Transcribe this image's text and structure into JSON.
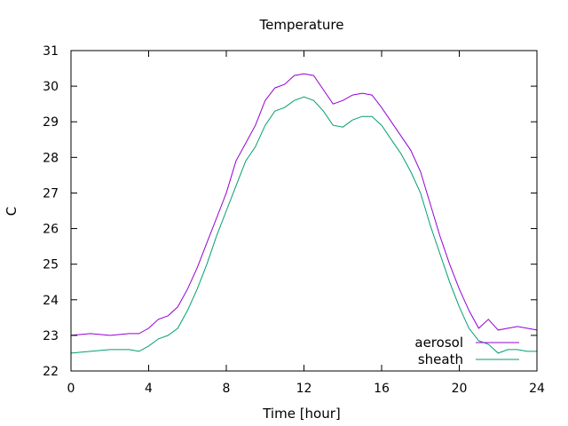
{
  "chart_data": {
    "type": "line",
    "title": "Temperature",
    "xlabel": "Time [hour]",
    "ylabel": "C",
    "xlim": [
      0,
      24
    ],
    "ylim": [
      22,
      31
    ],
    "x_ticks": [
      0,
      4,
      8,
      12,
      16,
      20,
      24
    ],
    "y_ticks": [
      22,
      23,
      24,
      25,
      26,
      27,
      28,
      29,
      30,
      31
    ],
    "grid": false,
    "legend_position": "bottom-right",
    "series": [
      {
        "name": "aerosol",
        "color": "#9400d3",
        "x": [
          0,
          1,
          2,
          3,
          3.5,
          4,
          4.5,
          5,
          5.5,
          6,
          6.5,
          7,
          7.5,
          8,
          8.5,
          9,
          9.5,
          10,
          10.5,
          11,
          11.5,
          12,
          12.5,
          13,
          13.5,
          14,
          14.5,
          15,
          15.5,
          16,
          16.5,
          17,
          17.5,
          18,
          18.5,
          19,
          19.5,
          20,
          20.5,
          21,
          21.5,
          22,
          22.5,
          23,
          23.5,
          24
        ],
        "y": [
          23.0,
          23.05,
          23.0,
          23.05,
          23.05,
          23.2,
          23.45,
          23.55,
          23.8,
          24.3,
          24.9,
          25.6,
          26.3,
          27.0,
          27.9,
          28.4,
          28.9,
          29.6,
          29.95,
          30.05,
          30.3,
          30.35,
          30.3,
          29.9,
          29.5,
          29.6,
          29.75,
          29.8,
          29.75,
          29.4,
          29.0,
          28.6,
          28.2,
          27.6,
          26.7,
          25.8,
          25.0,
          24.3,
          23.7,
          23.2,
          23.45,
          23.15,
          23.2,
          23.25,
          23.2,
          23.15
        ]
      },
      {
        "name": "sheath",
        "color": "#009e73",
        "x": [
          0,
          1,
          2,
          3,
          3.5,
          4,
          4.5,
          5,
          5.5,
          6,
          6.5,
          7,
          7.5,
          8,
          8.5,
          9,
          9.5,
          10,
          10.5,
          11,
          11.5,
          12,
          12.5,
          13,
          13.5,
          14,
          14.5,
          15,
          15.5,
          16,
          16.5,
          17,
          17.5,
          18,
          18.5,
          19,
          19.5,
          20,
          20.5,
          21,
          21.5,
          22,
          22.5,
          23,
          23.5,
          24
        ],
        "y": [
          22.5,
          22.55,
          22.6,
          22.6,
          22.55,
          22.7,
          22.9,
          23.0,
          23.2,
          23.7,
          24.3,
          25.0,
          25.8,
          26.5,
          27.2,
          27.9,
          28.3,
          28.9,
          29.3,
          29.4,
          29.6,
          29.7,
          29.6,
          29.3,
          28.9,
          28.85,
          29.05,
          29.15,
          29.15,
          28.9,
          28.5,
          28.1,
          27.6,
          27.0,
          26.1,
          25.3,
          24.5,
          23.8,
          23.2,
          22.85,
          22.75,
          22.5,
          22.6,
          22.6,
          22.55,
          22.55
        ]
      }
    ]
  }
}
